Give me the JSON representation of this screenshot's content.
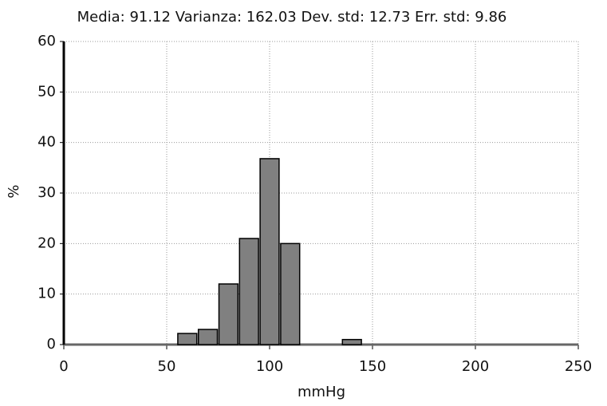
{
  "chart_data": {
    "type": "histogram",
    "title": "Media: 91.12  Varianza: 162.03  Dev. std: 12.73  Err. std: 9.86",
    "x_label": "mmHg",
    "y_label": "%",
    "bins": [
      55,
      65,
      75,
      85,
      95,
      105,
      115,
      125,
      135,
      145
    ],
    "values": [
      2.2,
      3,
      12,
      21,
      36.8,
      20,
      0,
      0,
      1
    ],
    "color": "#808080",
    "xlim": [
      0,
      250
    ],
    "xticks": [
      0,
      50,
      100,
      150,
      200,
      250
    ],
    "ylim": [
      0,
      60
    ],
    "yticks": [
      0,
      10,
      20,
      30,
      40,
      50,
      60
    ],
    "grid": true
  }
}
